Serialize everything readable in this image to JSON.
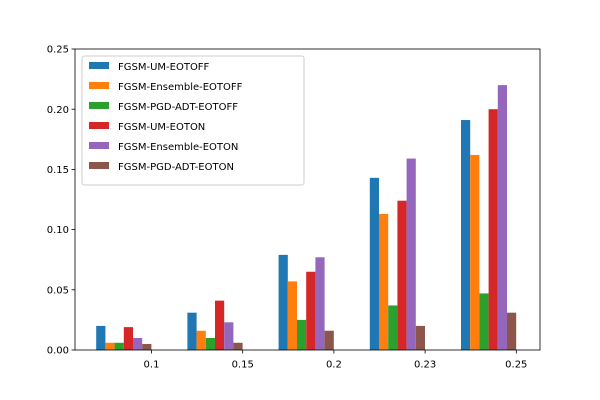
{
  "chart_data": {
    "type": "bar",
    "categories": [
      "0.1",
      "0.15",
      "0.2",
      "0.23",
      "0.25"
    ],
    "series": [
      {
        "name": "FGSM-UM-EOTOFF",
        "color": "#1f77b4",
        "values": [
          0.02,
          0.031,
          0.079,
          0.143,
          0.191
        ]
      },
      {
        "name": "FGSM-Ensemble-EOTOFF",
        "color": "#ff7f0e",
        "values": [
          0.006,
          0.016,
          0.057,
          0.113,
          0.162
        ]
      },
      {
        "name": "FGSM-PGD-ADT-EOTOFF",
        "color": "#2ca02c",
        "values": [
          0.006,
          0.01,
          0.025,
          0.037,
          0.047
        ]
      },
      {
        "name": "FGSM-UM-EOTON",
        "color": "#d62728",
        "values": [
          0.019,
          0.041,
          0.065,
          0.124,
          0.2
        ]
      },
      {
        "name": "FGSM-Ensemble-EOTON",
        "color": "#9467bd",
        "values": [
          0.01,
          0.023,
          0.077,
          0.159,
          0.22
        ]
      },
      {
        "name": "FGSM-PGD-ADT-EOTON",
        "color": "#8c564b",
        "values": [
          0.005,
          0.006,
          0.016,
          0.02,
          0.031
        ]
      }
    ],
    "yticks": [
      "0.00",
      "0.05",
      "0.10",
      "0.15",
      "0.20",
      "0.25"
    ],
    "ylim": [
      0,
      0.25
    ],
    "title": "",
    "xlabel": "",
    "ylabel": "",
    "grid": false,
    "legend_position": "top-left"
  }
}
